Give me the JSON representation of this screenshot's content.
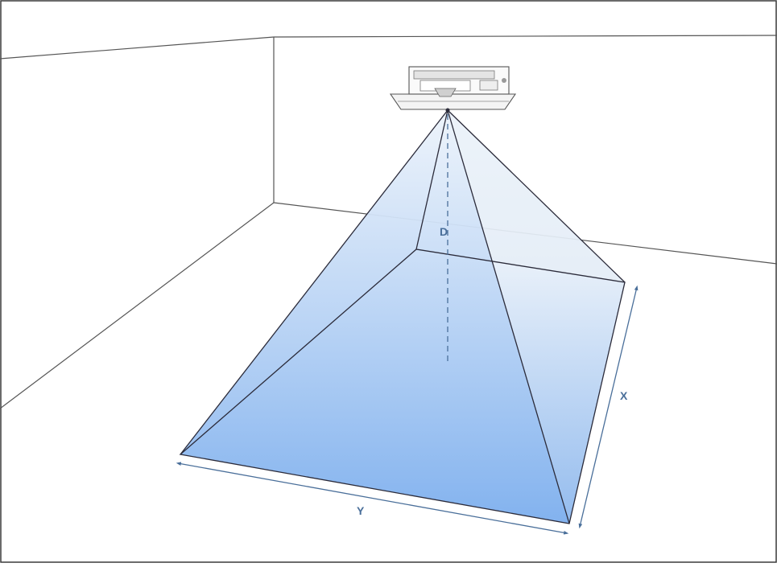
{
  "diagram": {
    "labels": {
      "distance": "D",
      "width": "X",
      "length": "Y"
    },
    "colors": {
      "frame": "#3a3a3a",
      "room_lines": "#555555",
      "beam_top": "#eef4fb",
      "beam_bottom": "#7fb0ee",
      "beam_edge": "#2b2b3a",
      "dimension": "#4a6f9a",
      "label": "#4a6f9a"
    },
    "icons": {
      "device": "ceiling-scanner-icon"
    }
  }
}
